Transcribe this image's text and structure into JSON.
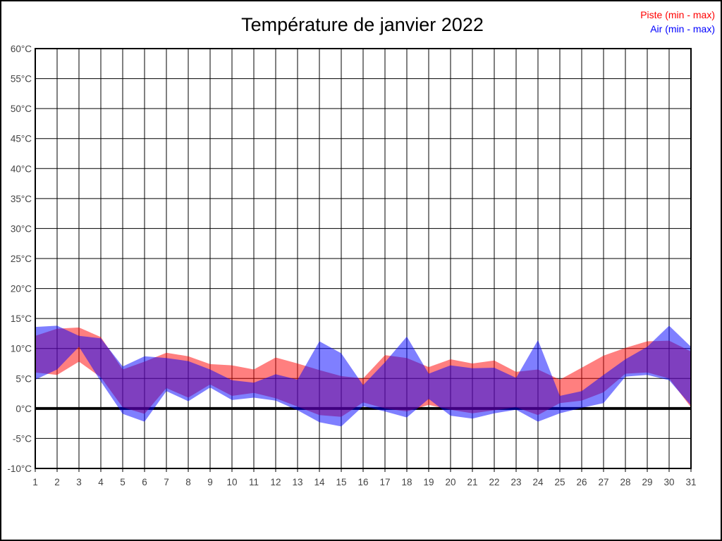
{
  "page": {
    "background": "#ffffff",
    "border_color": "#000000"
  },
  "chart_data": {
    "type": "range-area",
    "title": "Température de janvier 2022",
    "xlabel": "",
    "ylabel": "",
    "y_unit": "°C",
    "ylim": [
      -10,
      60
    ],
    "y_tick_values": [
      60,
      55,
      50,
      45,
      40,
      35,
      30,
      25,
      20,
      15,
      10,
      5,
      0,
      -5,
      -10
    ],
    "categories": [
      1,
      2,
      3,
      4,
      5,
      6,
      7,
      8,
      9,
      10,
      11,
      12,
      13,
      14,
      15,
      16,
      17,
      18,
      19,
      20,
      21,
      22,
      23,
      24,
      25,
      26,
      27,
      28,
      29,
      30,
      31
    ],
    "grid": true,
    "zero_line_bold": true,
    "legend_position": "top-right",
    "axis_color": "#000000",
    "tick_label_color": "#444444",
    "series": [
      {
        "name": "Piste (min - max)",
        "color": "#ff0000",
        "fill_opacity": 0.5,
        "max": [
          12.1,
          13.3,
          13.5,
          11.9,
          6.5,
          7.8,
          9.3,
          8.7,
          7.4,
          7.2,
          6.5,
          8.5,
          7.5,
          6.4,
          5.4,
          5.0,
          8.9,
          8.4,
          6.9,
          8.2,
          7.5,
          8.0,
          6.1,
          6.5,
          4.8,
          6.8,
          8.8,
          10.1,
          11.2,
          11.3,
          9.5
        ],
        "min": [
          6.0,
          5.6,
          7.8,
          5.2,
          0.2,
          -0.9,
          3.4,
          1.8,
          4.0,
          2.1,
          2.6,
          1.7,
          0.3,
          -1.1,
          -1.4,
          1.0,
          0.0,
          -0.5,
          0.6,
          -0.2,
          -0.8,
          -0.3,
          0.2,
          -1.1,
          0.9,
          1.3,
          2.7,
          5.8,
          6.0,
          5.0,
          0.2
        ]
      },
      {
        "name": "Air (min - max)",
        "color": "#0000ff",
        "fill_opacity": 0.5,
        "max": [
          13.6,
          13.8,
          12.1,
          11.7,
          7.0,
          8.7,
          8.4,
          7.9,
          6.5,
          4.7,
          4.3,
          5.7,
          4.8,
          11.2,
          9.2,
          3.9,
          7.7,
          12.0,
          5.8,
          7.2,
          6.7,
          6.8,
          5.1,
          11.4,
          2.1,
          2.9,
          5.6,
          8.2,
          10.3,
          13.8,
          10.3
        ],
        "min": [
          4.8,
          6.5,
          10.3,
          4.5,
          -0.9,
          -2.2,
          2.9,
          1.2,
          3.5,
          1.4,
          1.8,
          1.3,
          -0.3,
          -2.3,
          -3.0,
          0.4,
          -0.5,
          -1.5,
          1.6,
          -1.2,
          -1.7,
          -0.8,
          -0.2,
          -2.2,
          -0.8,
          0.1,
          0.9,
          5.3,
          5.6,
          4.7,
          0.5
        ]
      }
    ]
  }
}
